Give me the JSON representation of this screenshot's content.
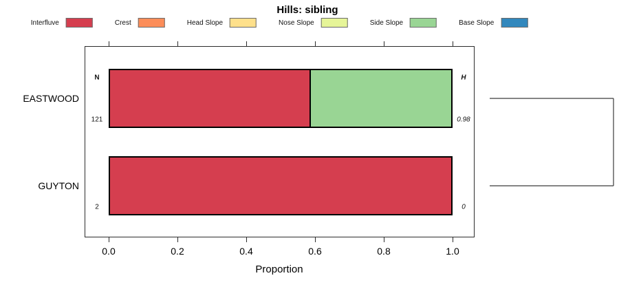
{
  "chart_data": {
    "type": "bar",
    "orientation": "horizontal-stacked",
    "title": "Hills: sibling",
    "xlabel": "Proportion",
    "xlim": [
      0,
      1
    ],
    "x_ticks": [
      0.0,
      0.2,
      0.4,
      0.6,
      0.8,
      1.0
    ],
    "x_tick_labels": [
      "0.0",
      "0.2",
      "0.4",
      "0.6",
      "0.8",
      "1.0"
    ],
    "categories": [
      "EASTWOOD",
      "GUYTON"
    ],
    "legend_position": "top",
    "grid": false,
    "series": [
      {
        "name": "Interfluve",
        "color": "#D53E4F",
        "values": [
          0.585,
          1.0
        ]
      },
      {
        "name": "Crest",
        "color": "#FC8D59",
        "values": [
          0,
          0
        ]
      },
      {
        "name": "Head Slope",
        "color": "#FEE08B",
        "values": [
          0,
          0
        ]
      },
      {
        "name": "Nose Slope",
        "color": "#E6F598",
        "values": [
          0,
          0
        ]
      },
      {
        "name": "Side Slope",
        "color": "#99D594",
        "values": [
          0.415,
          0
        ]
      },
      {
        "name": "Base Slope",
        "color": "#3288BD",
        "values": [
          0,
          0
        ]
      }
    ],
    "row_annotations": {
      "left_header": "N",
      "right_header": "H",
      "rows": [
        {
          "category": "EASTWOOD",
          "n": "121",
          "h": "0.98"
        },
        {
          "category": "GUYTON",
          "n": "2",
          "h": "0"
        }
      ]
    },
    "dendrogram": {
      "description": "bracket joining the two rows at right edge",
      "join_pairs": [
        [
          "EASTWOOD",
          "GUYTON"
        ]
      ]
    }
  }
}
